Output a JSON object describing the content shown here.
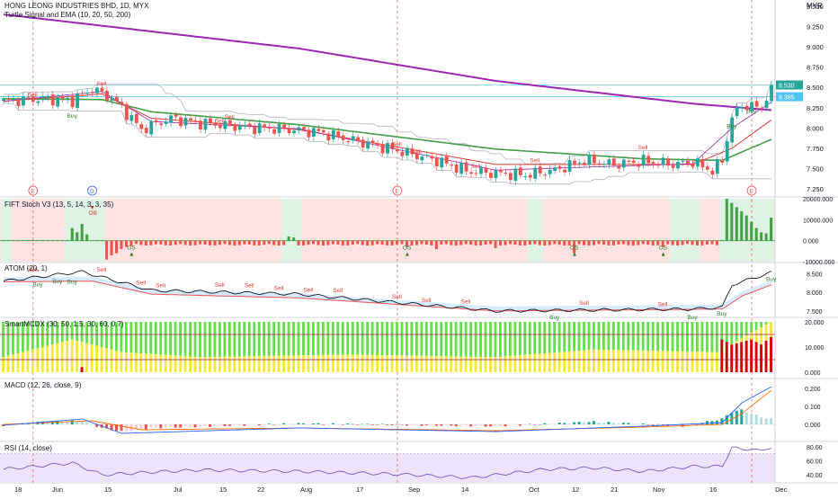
{
  "header": {
    "title": "HONG LEONG INDUSTRIES BHD, 1D, MYX",
    "indicator": "Turtle Signal and EMA (10, 20, 50, 200)",
    "currency": "MYR"
  },
  "colors": {
    "up": "#26a69a",
    "down": "#ef5350",
    "ema10": "#9c27b0",
    "ema20": "#e53935",
    "ema50": "#43a047",
    "ema200": "#9c27b0",
    "buy": "#2e7d32",
    "sell": "#e53935"
  },
  "chart_data": {
    "type": "candlestick",
    "x_labels": [
      "18",
      "Jun",
      "15",
      "Jul",
      "15",
      "22",
      "Aug",
      "17",
      "Sep",
      "14",
      "Oct",
      "12",
      "21",
      "Nov",
      "16",
      "Dec"
    ],
    "price_axis_ticks": [
      "9.500",
      "9.250",
      "9.000",
      "8.750",
      "8.500",
      "8.250",
      "8.000",
      "7.750",
      "7.500",
      "7.250"
    ],
    "last_price": "8.530",
    "ref_price": "8.385",
    "price_anchors": [
      {
        "i": 0,
        "c": 8.33
      },
      {
        "i": 8,
        "c": 8.36
      },
      {
        "i": 14,
        "c": 8.34
      },
      {
        "i": 18,
        "c": 8.48
      },
      {
        "i": 22,
        "c": 8.37
      },
      {
        "i": 24,
        "c": 8.25
      },
      {
        "i": 28,
        "c": 7.98
      },
      {
        "i": 34,
        "c": 8.12
      },
      {
        "i": 40,
        "c": 8.06
      },
      {
        "i": 46,
        "c": 8.03
      },
      {
        "i": 52,
        "c": 8.0
      },
      {
        "i": 58,
        "c": 7.98
      },
      {
        "i": 64,
        "c": 7.95
      },
      {
        "i": 70,
        "c": 7.86
      },
      {
        "i": 76,
        "c": 7.78
      },
      {
        "i": 82,
        "c": 7.69
      },
      {
        "i": 88,
        "c": 7.6
      },
      {
        "i": 94,
        "c": 7.47
      },
      {
        "i": 100,
        "c": 7.44
      },
      {
        "i": 106,
        "c": 7.42
      },
      {
        "i": 112,
        "c": 7.48
      },
      {
        "i": 118,
        "c": 7.6
      },
      {
        "i": 124,
        "c": 7.55
      },
      {
        "i": 130,
        "c": 7.59
      },
      {
        "i": 136,
        "c": 7.55
      },
      {
        "i": 140,
        "c": 7.58
      },
      {
        "i": 144,
        "c": 7.47
      },
      {
        "i": 146,
        "c": 7.6
      },
      {
        "i": 148,
        "c": 8.13
      },
      {
        "i": 150,
        "c": 8.28
      },
      {
        "i": 154,
        "c": 8.25
      },
      {
        "i": 156,
        "c": 8.53
      }
    ],
    "ema200": [
      {
        "i": 0,
        "v": 9.4
      },
      {
        "i": 60,
        "v": 8.98
      },
      {
        "i": 100,
        "v": 8.58
      },
      {
        "i": 140,
        "v": 8.3
      },
      {
        "i": 156,
        "v": 8.22
      }
    ],
    "ema50": [
      {
        "i": 0,
        "v": 8.36
      },
      {
        "i": 20,
        "v": 8.35
      },
      {
        "i": 30,
        "v": 8.2
      },
      {
        "i": 60,
        "v": 8.04
      },
      {
        "i": 100,
        "v": 7.74
      },
      {
        "i": 130,
        "v": 7.62
      },
      {
        "i": 146,
        "v": 7.6
      },
      {
        "i": 156,
        "v": 7.86
      }
    ],
    "ema20": [
      {
        "i": 0,
        "v": 8.33
      },
      {
        "i": 20,
        "v": 8.42
      },
      {
        "i": 30,
        "v": 8.12
      },
      {
        "i": 60,
        "v": 7.98
      },
      {
        "i": 100,
        "v": 7.55
      },
      {
        "i": 140,
        "v": 7.55
      },
      {
        "i": 148,
        "v": 7.75
      },
      {
        "i": 156,
        "v": 8.1
      }
    ],
    "ema10": [
      {
        "i": 0,
        "v": 8.33
      },
      {
        "i": 20,
        "v": 8.45
      },
      {
        "i": 30,
        "v": 8.08
      },
      {
        "i": 60,
        "v": 7.99
      },
      {
        "i": 100,
        "v": 7.48
      },
      {
        "i": 140,
        "v": 7.56
      },
      {
        "i": 148,
        "v": 8.0
      },
      {
        "i": 156,
        "v": 8.32
      }
    ],
    "event_markers": [
      {
        "i": 6,
        "label": "E"
      },
      {
        "i": 18,
        "label": "D"
      },
      {
        "i": 80,
        "label": "E"
      },
      {
        "i": 152,
        "label": "E"
      }
    ],
    "price_signals": [
      {
        "i": 6,
        "label": "Sell",
        "type": "sell"
      },
      {
        "i": 14,
        "label": "Buy",
        "type": "buy"
      },
      {
        "i": 20,
        "label": "Sell",
        "type": "sell"
      },
      {
        "i": 44,
        "label": "Sell",
        "type": "sell"
      },
      {
        "i": 46,
        "label": "Sell",
        "type": "sell"
      },
      {
        "i": 80,
        "label": "Sell",
        "type": "sell"
      },
      {
        "i": 84,
        "label": "Sell",
        "type": "sell"
      },
      {
        "i": 96,
        "label": "Sell",
        "type": "sell"
      },
      {
        "i": 108,
        "label": "Sell",
        "type": "sell"
      },
      {
        "i": 130,
        "label": "Sell",
        "type": "sell"
      },
      {
        "i": 148,
        "label": "Buy",
        "type": "buy"
      },
      {
        "i": 152,
        "label": "Buy",
        "type": "buy"
      }
    ],
    "panels": {
      "stoch": {
        "label": "FIFT Stoch V3 (13, 5, 14, 3, 3, 35)",
        "ticks": [
          "20000.000",
          "10000.000",
          "0.000",
          "-10000.000"
        ],
        "os_marks": [
          {
            "i": 26,
            "label": "OS"
          },
          {
            "i": 82,
            "label": "OS"
          },
          {
            "i": 116,
            "label": "OS"
          },
          {
            "i": 134,
            "label": "OS"
          }
        ],
        "ob_marks": [
          {
            "i": 18,
            "label": "OB"
          }
        ],
        "green_zones": [
          [
            0,
            1
          ],
          [
            13,
            20
          ],
          [
            57,
            60
          ],
          [
            107,
            109
          ],
          [
            136,
            141
          ],
          [
            146,
            156
          ]
        ],
        "histogram": [
          {
            "i": 14,
            "v": 6000
          },
          {
            "i": 15,
            "v": 4000
          },
          {
            "i": 16,
            "v": 8000
          },
          {
            "i": 17,
            "v": 3000
          },
          {
            "i": 21,
            "v": -9000
          },
          {
            "i": 22,
            "v": -7000
          },
          {
            "i": 23,
            "v": -6000
          },
          {
            "i": 24,
            "v": -4000
          },
          {
            "i": 25,
            "v": -3000
          },
          {
            "i": 26,
            "v": -2500
          },
          {
            "i": 58,
            "v": 2000
          },
          {
            "i": 59,
            "v": 1500
          },
          {
            "i": 82,
            "v": -3000
          },
          {
            "i": 88,
            "v": -4000
          },
          {
            "i": 100,
            "v": -3500
          },
          {
            "i": 116,
            "v": -6000
          },
          {
            "i": 134,
            "v": -3000
          },
          {
            "i": 147,
            "v": 20000
          },
          {
            "i": 148,
            "v": 18000
          },
          {
            "i": 149,
            "v": 16000
          },
          {
            "i": 150,
            "v": 14000
          },
          {
            "i": 151,
            "v": 12000
          },
          {
            "i": 152,
            "v": 9000
          },
          {
            "i": 153,
            "v": 6000
          },
          {
            "i": 154,
            "v": 4000
          },
          {
            "i": 155,
            "v": 3500
          },
          {
            "i": 156,
            "v": 11000
          }
        ]
      },
      "atom": {
        "label": "ATOM (20, 1)",
        "ticks": [
          "8.500",
          "8.000",
          "7.500"
        ],
        "signals": [
          {
            "i": 6,
            "label": "Sell",
            "type": "sell"
          },
          {
            "i": 7,
            "label": "Buy",
            "type": "buy"
          },
          {
            "i": 11,
            "label": "Buy",
            "type": "buy"
          },
          {
            "i": 14,
            "label": "Buy",
            "type": "buy"
          },
          {
            "i": 20,
            "label": "Sell",
            "type": "sell"
          },
          {
            "i": 28,
            "label": "Sell",
            "type": "sell"
          },
          {
            "i": 32,
            "label": "Sell",
            "type": "sell"
          },
          {
            "i": 44,
            "label": "Sell",
            "type": "sell"
          },
          {
            "i": 50,
            "label": "Sell",
            "type": "sell"
          },
          {
            "i": 56,
            "label": "Sell",
            "type": "sell"
          },
          {
            "i": 62,
            "label": "Sell",
            "type": "sell"
          },
          {
            "i": 68,
            "label": "Sell",
            "type": "sell"
          },
          {
            "i": 80,
            "label": "Sell",
            "type": "sell"
          },
          {
            "i": 86,
            "label": "Sell",
            "type": "sell"
          },
          {
            "i": 94,
            "label": "Sell",
            "type": "sell"
          },
          {
            "i": 112,
            "label": "Buy",
            "type": "buy"
          },
          {
            "i": 118,
            "label": "Sell",
            "type": "sell"
          },
          {
            "i": 134,
            "label": "Sell",
            "type": "sell"
          },
          {
            "i": 140,
            "label": "Buy",
            "type": "buy"
          },
          {
            "i": 146,
            "label": "Buy",
            "type": "buy"
          },
          {
            "i": 156,
            "label": "Buy",
            "type": "buy"
          }
        ],
        "line": [
          {
            "i": 0,
            "v": 8.3
          },
          {
            "i": 16,
            "v": 8.55
          },
          {
            "i": 30,
            "v": 8.05
          },
          {
            "i": 60,
            "v": 7.95
          },
          {
            "i": 100,
            "v": 7.5
          },
          {
            "i": 140,
            "v": 7.55
          },
          {
            "i": 146,
            "v": 7.6
          },
          {
            "i": 148,
            "v": 8.2
          },
          {
            "i": 156,
            "v": 8.53
          }
        ],
        "trail": [
          {
            "i": 0,
            "v": 8.28
          },
          {
            "i": 18,
            "v": 8.3
          },
          {
            "i": 30,
            "v": 7.95
          },
          {
            "i": 60,
            "v": 7.85
          },
          {
            "i": 100,
            "v": 7.5
          },
          {
            "i": 146,
            "v": 7.55
          },
          {
            "i": 150,
            "v": 7.9
          },
          {
            "i": 156,
            "v": 8.2
          }
        ]
      },
      "smartmcdx": {
        "label": "SmartMCDX (30, 50, 1.5, 30, 60, 0.7)",
        "ticks": [
          "20.000",
          "10.000",
          "0.000"
        ],
        "bar_total": 20,
        "red_from": 146,
        "yellow_wave": [
          {
            "i": 0,
            "v": 6
          },
          {
            "i": 14,
            "v": 13
          },
          {
            "i": 24,
            "v": 8
          },
          {
            "i": 40,
            "v": 6
          },
          {
            "i": 70,
            "v": 7
          },
          {
            "i": 100,
            "v": 6
          },
          {
            "i": 120,
            "v": 9
          },
          {
            "i": 145,
            "v": 8
          },
          {
            "i": 156,
            "v": 20
          }
        ],
        "red_values": [
          {
            "i": 146,
            "v": 13
          },
          {
            "i": 148,
            "v": 11
          },
          {
            "i": 150,
            "v": 12
          },
          {
            "i": 152,
            "v": 13
          },
          {
            "i": 154,
            "v": 11
          },
          {
            "i": 156,
            "v": 14
          }
        ],
        "red_spike": {
          "i": 16,
          "v": 2
        }
      },
      "macd": {
        "label": "MACD (12, 26, close, 9)",
        "ticks": [
          "0.200",
          "0.100",
          "0.000"
        ],
        "macd_line": [
          {
            "i": 0,
            "v": -0.005
          },
          {
            "i": 16,
            "v": 0.03
          },
          {
            "i": 24,
            "v": -0.05
          },
          {
            "i": 60,
            "v": -0.02
          },
          {
            "i": 100,
            "v": -0.04
          },
          {
            "i": 130,
            "v": -0.01
          },
          {
            "i": 146,
            "v": 0.01
          },
          {
            "i": 150,
            "v": 0.12
          },
          {
            "i": 156,
            "v": 0.21
          }
        ],
        "signal_line": [
          {
            "i": 0,
            "v": 0.0
          },
          {
            "i": 18,
            "v": 0.02
          },
          {
            "i": 28,
            "v": -0.03
          },
          {
            "i": 60,
            "v": -0.02
          },
          {
            "i": 100,
            "v": -0.035
          },
          {
            "i": 130,
            "v": -0.015
          },
          {
            "i": 146,
            "v": 0.0
          },
          {
            "i": 150,
            "v": 0.06
          },
          {
            "i": 156,
            "v": 0.19
          }
        ],
        "histogram": [
          {
            "i": 0,
            "v": -0.01
          },
          {
            "i": 8,
            "v": 0.015
          },
          {
            "i": 16,
            "v": 0.02
          },
          {
            "i": 20,
            "v": -0.02
          },
          {
            "i": 24,
            "v": -0.04
          },
          {
            "i": 30,
            "v": -0.02
          },
          {
            "i": 60,
            "v": 0.005
          },
          {
            "i": 100,
            "v": -0.01
          },
          {
            "i": 120,
            "v": 0.015
          },
          {
            "i": 138,
            "v": -0.01
          },
          {
            "i": 146,
            "v": 0.03
          },
          {
            "i": 148,
            "v": 0.07
          },
          {
            "i": 150,
            "v": 0.08
          },
          {
            "i": 152,
            "v": 0.06
          },
          {
            "i": 154,
            "v": 0.04
          },
          {
            "i": 156,
            "v": 0.03
          }
        ]
      },
      "rsi": {
        "label": "RSI (14, close)",
        "ticks": [
          "80.00",
          "60.00",
          "40.00"
        ],
        "line": [
          {
            "i": 0,
            "v": 48
          },
          {
            "i": 14,
            "v": 57
          },
          {
            "i": 20,
            "v": 40
          },
          {
            "i": 30,
            "v": 44
          },
          {
            "i": 40,
            "v": 47
          },
          {
            "i": 60,
            "v": 45
          },
          {
            "i": 80,
            "v": 41
          },
          {
            "i": 95,
            "v": 36
          },
          {
            "i": 110,
            "v": 48
          },
          {
            "i": 120,
            "v": 50
          },
          {
            "i": 130,
            "v": 45
          },
          {
            "i": 140,
            "v": 52
          },
          {
            "i": 146,
            "v": 52
          },
          {
            "i": 148,
            "v": 80
          },
          {
            "i": 150,
            "v": 75
          },
          {
            "i": 152,
            "v": 78
          },
          {
            "i": 154,
            "v": 73
          },
          {
            "i": 156,
            "v": 80
          }
        ]
      }
    }
  }
}
